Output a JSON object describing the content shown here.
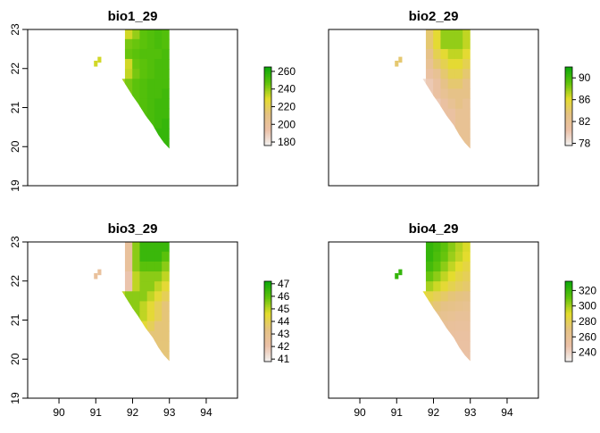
{
  "chart_data": [
    {
      "type": "heatmap",
      "title": "bio1_29",
      "xlabel": "",
      "ylabel": "",
      "xlim": [
        89.15,
        94.85
      ],
      "ylim": [
        19,
        23
      ],
      "x_ticks": [],
      "y_ticks": [
        "19",
        "20",
        "21",
        "22",
        "23"
      ],
      "legend": {
        "min": 176,
        "max": 265,
        "ticks": [
          "180",
          "200",
          "220",
          "240",
          "260"
        ],
        "tick_values": [
          180,
          200,
          220,
          240,
          260
        ],
        "colors": [
          "#f2f2f2",
          "#ebc1a8",
          "#e5c283",
          "#e4dc2c",
          "#5fc30b",
          "#0da80a"
        ]
      },
      "field": [
        [
          null,
          null,
          null,
          null,
          232,
          240,
          248,
          250,
          252,
          250
        ],
        [
          null,
          null,
          null,
          null,
          244,
          246,
          248,
          250,
          252,
          250
        ],
        [
          null,
          null,
          null,
          null,
          246,
          248,
          250,
          250,
          250,
          252
        ],
        [
          null,
          null,
          null,
          null,
          232,
          246,
          248,
          250,
          252,
          252
        ],
        [
          null,
          null,
          null,
          null,
          234,
          244,
          248,
          250,
          252,
          252
        ],
        [
          null,
          null,
          null,
          238,
          244,
          248,
          250,
          252,
          252,
          252
        ],
        [
          null,
          null,
          null,
          238,
          244,
          248,
          250,
          252,
          252,
          254
        ],
        [
          null,
          null,
          null,
          null,
          244,
          248,
          250,
          252,
          254,
          254
        ],
        [
          null,
          null,
          null,
          null,
          null,
          246,
          250,
          252,
          254,
          254
        ],
        [
          null,
          null,
          null,
          null,
          null,
          248,
          250,
          252,
          254,
          256
        ],
        [
          null,
          null,
          null,
          null,
          null,
          null,
          252,
          254,
          256,
          256
        ],
        [
          null,
          null,
          null,
          null,
          null,
          null,
          null,
          254,
          256,
          256
        ]
      ]
    },
    {
      "type": "heatmap",
      "title": "bio2_29",
      "xlabel": "",
      "ylabel": "",
      "xlim": [
        89.15,
        94.85
      ],
      "ylim": [
        19,
        23
      ],
      "x_ticks": [],
      "y_ticks": [],
      "legend": {
        "min": 77.6,
        "max": 92,
        "ticks": [
          "78",
          "82",
          "86",
          "90"
        ],
        "tick_values": [
          78,
          82,
          86,
          90
        ],
        "colors": [
          "#f2f2f2",
          "#ebc1a8",
          "#e5c283",
          "#e4dc2c",
          "#5fc30b",
          "#0da80a"
        ]
      },
      "field": [
        [
          null,
          null,
          null,
          null,
          84,
          86,
          88,
          88,
          88,
          87
        ],
        [
          null,
          null,
          null,
          null,
          84,
          86,
          88,
          88,
          88,
          87
        ],
        [
          null,
          null,
          null,
          null,
          83,
          85,
          86,
          87,
          87,
          86
        ],
        [
          null,
          null,
          null,
          null,
          82,
          84,
          85,
          86,
          86,
          85
        ],
        [
          null,
          null,
          null,
          null,
          81,
          82,
          84,
          85,
          85,
          84
        ],
        [
          null,
          null,
          null,
          79,
          80,
          81,
          83,
          84,
          84,
          83
        ],
        [
          null,
          null,
          null,
          79,
          80,
          81,
          82,
          83,
          83,
          83
        ],
        [
          null,
          null,
          null,
          null,
          79,
          80,
          81,
          82,
          83,
          82
        ],
        [
          null,
          null,
          null,
          null,
          null,
          80,
          81,
          81,
          82,
          82
        ],
        [
          null,
          null,
          null,
          null,
          null,
          80,
          80,
          81,
          82,
          82
        ],
        [
          null,
          null,
          null,
          null,
          null,
          null,
          80,
          81,
          82,
          82
        ],
        [
          null,
          null,
          null,
          null,
          null,
          null,
          null,
          81,
          82,
          82
        ]
      ]
    },
    {
      "type": "heatmap",
      "title": "bio3_29",
      "xlabel": "",
      "ylabel": "",
      "xlim": [
        89.15,
        94.85
      ],
      "ylim": [
        19,
        23
      ],
      "x_ticks": [
        "90",
        "91",
        "92",
        "93",
        "94"
      ],
      "y_ticks": [
        "19",
        "20",
        "21",
        "22",
        "23"
      ],
      "legend": {
        "min": 40.8,
        "max": 47.2,
        "ticks": [
          "41",
          "42",
          "43",
          "44",
          "45",
          "46",
          "47"
        ],
        "tick_values": [
          41,
          42,
          43,
          44,
          45,
          46,
          47
        ],
        "colors": [
          "#f2f2f2",
          "#ebc1a8",
          "#e5c283",
          "#e4dc2c",
          "#5fc30b",
          "#0da80a"
        ]
      },
      "field": [
        [
          null,
          null,
          null,
          null,
          42.5,
          45.5,
          46.5,
          46.5,
          46.5,
          46.5
        ],
        [
          null,
          null,
          null,
          null,
          42.5,
          45.5,
          46.5,
          46.5,
          46.5,
          46
        ],
        [
          null,
          null,
          null,
          null,
          42.5,
          45.5,
          46,
          46,
          46,
          45.5
        ],
        [
          null,
          null,
          null,
          null,
          42,
          45,
          45.5,
          45.5,
          45.5,
          45
        ],
        [
          null,
          null,
          null,
          null,
          42,
          45,
          45.5,
          45.5,
          45,
          44.5
        ],
        [
          null,
          null,
          null,
          45,
          45.5,
          45.5,
          45.5,
          45,
          44.5,
          44
        ],
        [
          null,
          null,
          null,
          45.5,
          45.5,
          45.5,
          45,
          44.5,
          44,
          43.5
        ],
        [
          null,
          null,
          null,
          null,
          45.5,
          45.5,
          45,
          44.5,
          44,
          43.5
        ],
        [
          null,
          null,
          null,
          null,
          null,
          45,
          44.5,
          44,
          43.5,
          43.5
        ],
        [
          null,
          null,
          null,
          null,
          null,
          44.5,
          44,
          43.5,
          43.5,
          43.5
        ],
        [
          null,
          null,
          null,
          null,
          null,
          null,
          43.5,
          43.5,
          43.5,
          43.5
        ],
        [
          null,
          null,
          null,
          null,
          null,
          null,
          null,
          43.5,
          43.5,
          43.5
        ]
      ]
    },
    {
      "type": "heatmap",
      "title": "bio4_29",
      "xlabel": "",
      "ylabel": "",
      "xlim": [
        89.15,
        94.85
      ],
      "ylim": [
        19,
        23
      ],
      "x_ticks": [
        "90",
        "91",
        "92",
        "93",
        "94"
      ],
      "y_ticks": [],
      "legend": {
        "min": 228,
        "max": 332,
        "ticks": [
          "240",
          "260",
          "280",
          "300",
          "320"
        ],
        "tick_values": [
          240,
          260,
          280,
          300,
          320
        ],
        "colors": [
          "#f2f2f2",
          "#ebc1a8",
          "#e5c283",
          "#e4dc2c",
          "#5fc30b",
          "#0da80a"
        ]
      },
      "field": [
        [
          null,
          null,
          null,
          null,
          322,
          318,
          312,
          305,
          298,
          292
        ],
        [
          null,
          null,
          null,
          null,
          322,
          316,
          310,
          302,
          296,
          290
        ],
        [
          null,
          null,
          null,
          null,
          318,
          312,
          304,
          296,
          290,
          285
        ],
        [
          null,
          null,
          null,
          null,
          310,
          304,
          296,
          290,
          284,
          280
        ],
        [
          null,
          null,
          null,
          null,
          300,
          294,
          288,
          282,
          278,
          275
        ],
        [
          null,
          null,
          null,
          290,
          284,
          280,
          276,
          272,
          270,
          268
        ],
        [
          null,
          null,
          null,
          280,
          276,
          272,
          268,
          266,
          264,
          262
        ],
        [
          null,
          null,
          null,
          null,
          268,
          265,
          262,
          260,
          258,
          258
        ],
        [
          null,
          null,
          null,
          null,
          null,
          260,
          258,
          256,
          255,
          255
        ],
        [
          null,
          null,
          null,
          null,
          null,
          256,
          255,
          254,
          253,
          253
        ],
        [
          null,
          null,
          null,
          null,
          null,
          null,
          254,
          253,
          252,
          252
        ],
        [
          null,
          null,
          null,
          null,
          null,
          null,
          null,
          252,
          251,
          251
        ]
      ]
    }
  ]
}
